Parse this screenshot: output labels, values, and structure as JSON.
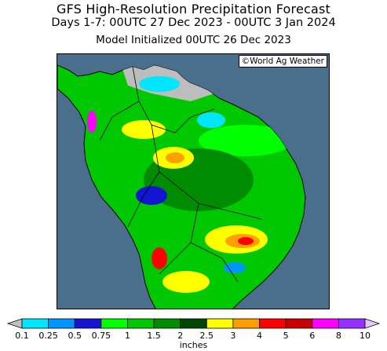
{
  "header": {
    "title": "GFS High-Resolution Precipitation Forecast",
    "period": "Days 1-7: 00UTC 27 Dec 2023 - 00UTC 3 Jan 2024",
    "init": "Model Initialized 00UTC 26 Dec 2023"
  },
  "map": {
    "credit": "©World Ag Weather",
    "region": "South America",
    "ocean_color": "#4a6f8c",
    "dry_land_color": "#bdbdbd"
  },
  "legend": {
    "units": "inches",
    "ticks": [
      "0.1",
      "0.25",
      "0.5",
      "0.75",
      "1",
      "1.5",
      "2",
      "2.5",
      "3",
      "4",
      "5",
      "6",
      "8",
      "10"
    ],
    "colors": [
      "#bfbfbf",
      "#00e6ff",
      "#0096ff",
      "#1414d2",
      "#00ff00",
      "#00c800",
      "#008c00",
      "#004600",
      "#ffff00",
      "#ffa000",
      "#ff0000",
      "#c80000",
      "#ff00ff",
      "#9632ff",
      "#e6c8ff"
    ]
  }
}
